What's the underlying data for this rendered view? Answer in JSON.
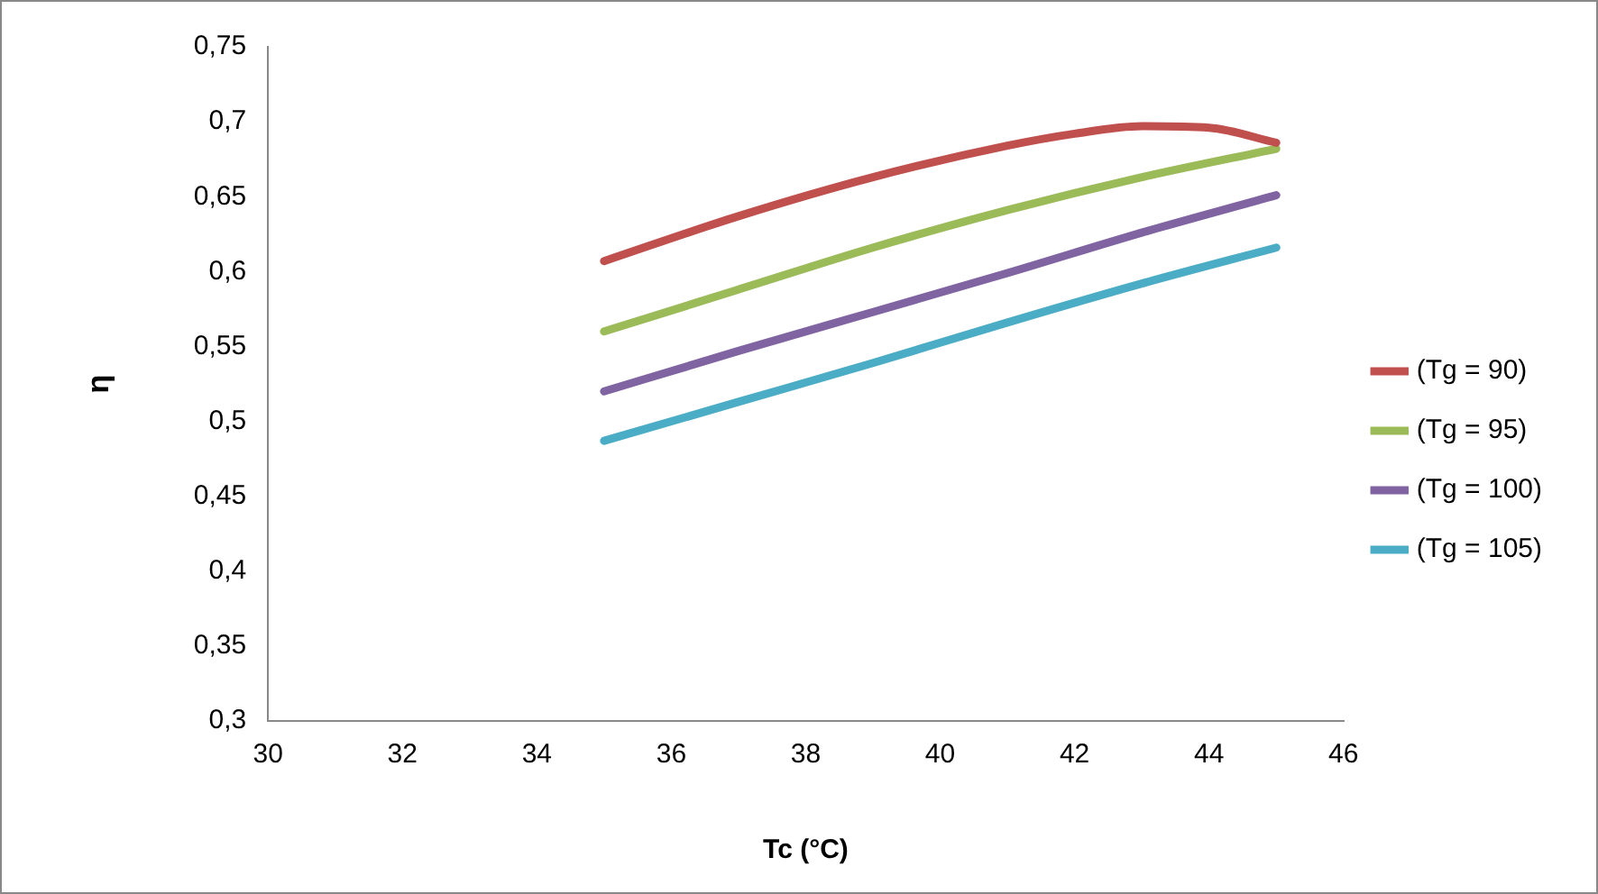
{
  "chart_data": {
    "type": "line",
    "xlabel": "Tc (°C)",
    "ylabel": "η",
    "x": [
      35,
      37,
      39,
      41,
      42,
      43,
      44,
      45
    ],
    "series": [
      {
        "name": "(Tg = 90)",
        "color": "#c0504d",
        "values": [
          0.607,
          0.637,
          0.663,
          0.684,
          0.692,
          0.697,
          0.696,
          0.686
        ]
      },
      {
        "name": "(Tg = 95)",
        "color": "#9bbb59",
        "x": [
          35,
          37,
          39,
          41,
          43,
          45
        ],
        "values": [
          0.56,
          0.588,
          0.616,
          0.641,
          0.663,
          0.682
        ]
      },
      {
        "name": "(Tg = 100)",
        "color": "#8064a2",
        "x": [
          35,
          37,
          39,
          41,
          43,
          45
        ],
        "values": [
          0.52,
          0.547,
          0.573,
          0.599,
          0.626,
          0.651
        ]
      },
      {
        "name": "(Tg = 105)",
        "color": "#4bacc6",
        "x": [
          35,
          37,
          39,
          41,
          43,
          45
        ],
        "values": [
          0.487,
          0.513,
          0.539,
          0.566,
          0.592,
          0.616
        ]
      }
    ],
    "xlim": [
      30,
      46
    ],
    "xticks": [
      30,
      32,
      34,
      36,
      38,
      40,
      42,
      44,
      46
    ],
    "ylim": [
      0.3,
      0.75
    ],
    "yticks": [
      {
        "value": 0.3,
        "label": "0,3"
      },
      {
        "value": 0.35,
        "label": "0,35"
      },
      {
        "value": 0.4,
        "label": "0,4"
      },
      {
        "value": 0.45,
        "label": "0,45"
      },
      {
        "value": 0.5,
        "label": "0,5"
      },
      {
        "value": 0.55,
        "label": "0,55"
      },
      {
        "value": 0.6,
        "label": "0,6"
      },
      {
        "value": 0.65,
        "label": "0,65"
      },
      {
        "value": 0.7,
        "label": "0,7"
      },
      {
        "value": 0.75,
        "label": "0,75"
      }
    ],
    "grid": false,
    "legend": "right",
    "marker": "none",
    "line_style": "solid"
  }
}
